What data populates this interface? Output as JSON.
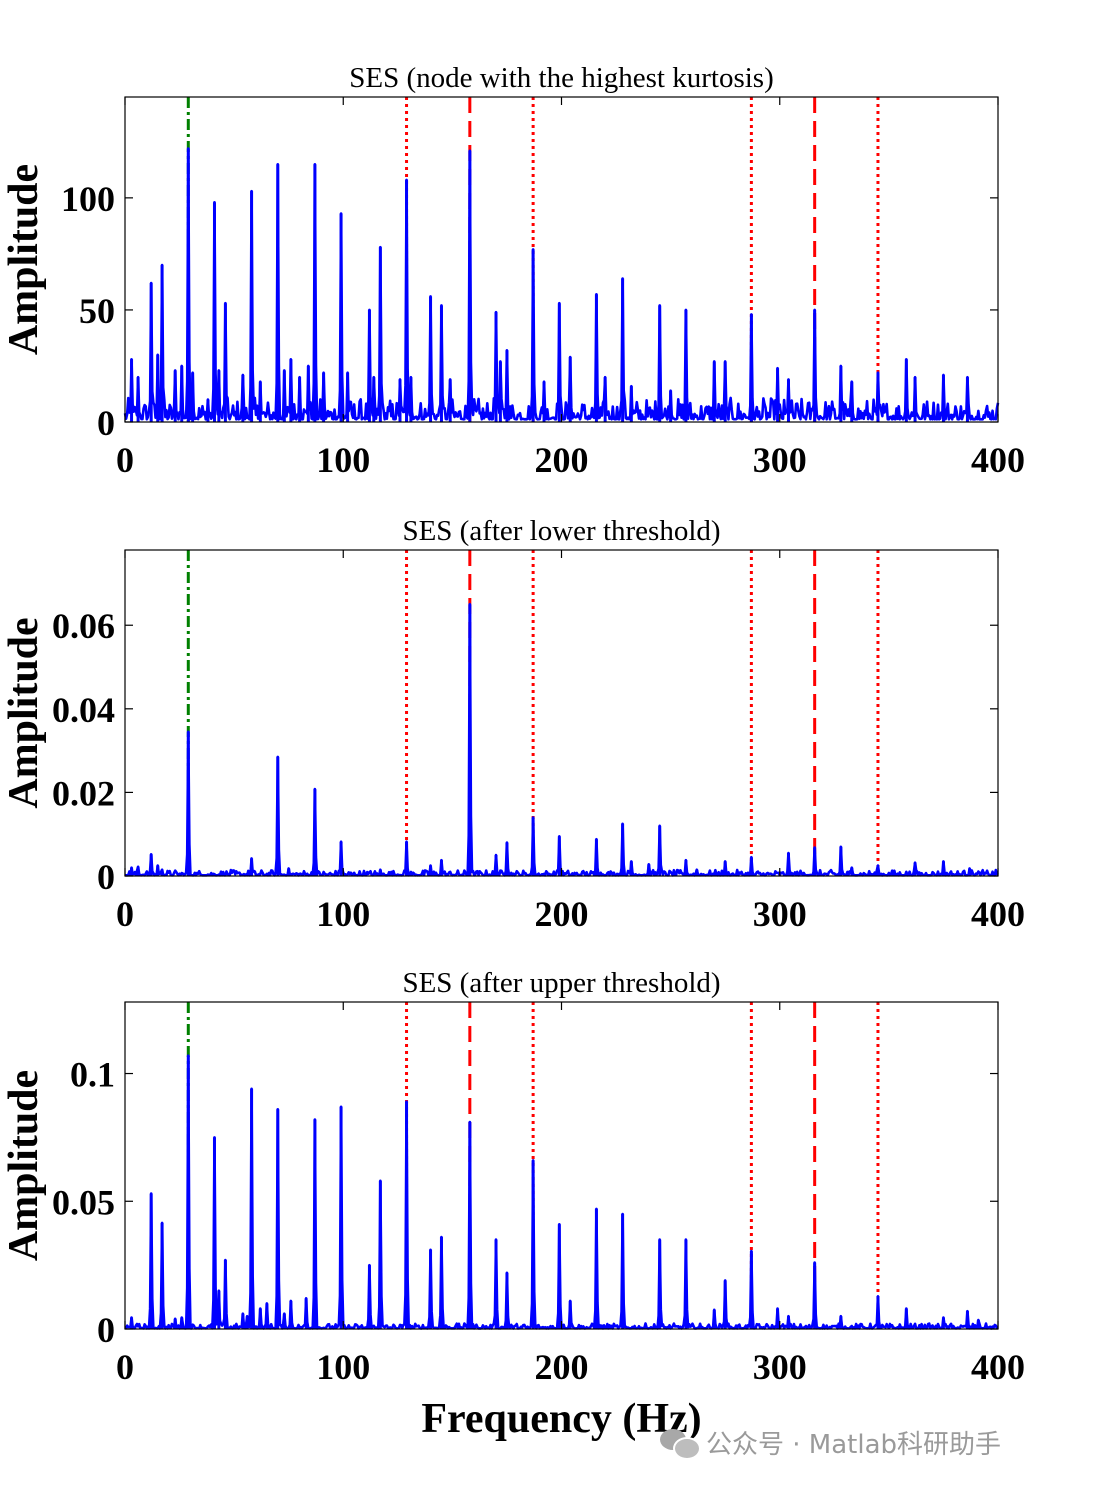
{
  "figure": {
    "xlabel": "Frequency (Hz)",
    "watermark": "公众号 · Matlab科研助手"
  },
  "colors": {
    "spectrum": "#0000ff",
    "marker_green": "#008000",
    "marker_red": "#ff0000",
    "axes": "#000000"
  },
  "markers": {
    "green_dashdot": [
      29
    ],
    "red_dotted": [
      129,
      187,
      287,
      345
    ],
    "red_dashed": [
      158,
      316
    ]
  },
  "chart_data": [
    {
      "type": "line",
      "title": "SES (node with the highest kurtosis)",
      "ylabel": "Amplitude",
      "xlabel": "",
      "xlim": [
        0,
        400
      ],
      "ylim": [
        0,
        145
      ],
      "xticks": [
        0,
        100,
        200,
        300,
        400
      ],
      "yticks": [
        0,
        50,
        100
      ],
      "ytick_labels": [
        "0",
        "50",
        "100"
      ],
      "noise_level": 6,
      "peaks": [
        [
          3,
          28
        ],
        [
          6,
          20
        ],
        [
          12,
          62
        ],
        [
          15,
          30
        ],
        [
          17,
          70
        ],
        [
          23,
          23
        ],
        [
          26,
          25
        ],
        [
          29,
          122
        ],
        [
          31,
          22
        ],
        [
          38,
          10
        ],
        [
          41,
          98
        ],
        [
          43,
          23
        ],
        [
          46,
          53
        ],
        [
          54,
          21
        ],
        [
          58,
          103
        ],
        [
          62,
          18
        ],
        [
          70,
          115
        ],
        [
          73,
          23
        ],
        [
          76,
          28
        ],
        [
          80,
          20
        ],
        [
          84,
          25
        ],
        [
          87,
          115
        ],
        [
          91,
          22
        ],
        [
          99,
          93
        ],
        [
          102,
          22
        ],
        [
          112,
          50
        ],
        [
          114,
          20
        ],
        [
          117,
          78
        ],
        [
          126,
          19
        ],
        [
          129,
          108
        ],
        [
          131,
          20
        ],
        [
          140,
          56
        ],
        [
          145,
          52
        ],
        [
          149,
          19
        ],
        [
          158,
          121
        ],
        [
          170,
          49
        ],
        [
          172,
          27
        ],
        [
          175,
          32
        ],
        [
          187,
          77
        ],
        [
          192,
          18
        ],
        [
          199,
          53
        ],
        [
          204,
          29
        ],
        [
          216,
          57
        ],
        [
          220,
          20
        ],
        [
          228,
          64
        ],
        [
          232,
          16
        ],
        [
          245,
          52
        ],
        [
          250,
          14
        ],
        [
          257,
          50
        ],
        [
          270,
          27
        ],
        [
          275,
          27
        ],
        [
          287,
          48
        ],
        [
          299,
          24
        ],
        [
          304,
          19
        ],
        [
          316,
          50
        ],
        [
          328,
          25
        ],
        [
          333,
          18
        ],
        [
          345,
          22
        ],
        [
          358,
          28
        ],
        [
          362,
          20
        ],
        [
          375,
          21
        ],
        [
          386,
          20
        ]
      ]
    },
    {
      "type": "line",
      "title": "SES (after lower threshold)",
      "ylabel": "Amplitude",
      "xlabel": "",
      "xlim": [
        0,
        400
      ],
      "ylim": [
        0,
        0.078
      ],
      "xticks": [
        0,
        100,
        200,
        300,
        400
      ],
      "yticks": [
        0,
        0.02,
        0.04,
        0.06
      ],
      "ytick_labels": [
        "0",
        "0.02",
        "0.04",
        "0.06"
      ],
      "noise_level": 0.0008,
      "peaks": [
        [
          3,
          0.002
        ],
        [
          6,
          0.0022
        ],
        [
          12,
          0.0052
        ],
        [
          15,
          0.0025
        ],
        [
          17,
          0.0015
        ],
        [
          29,
          0.0345
        ],
        [
          58,
          0.0042
        ],
        [
          70,
          0.0285
        ],
        [
          75,
          0.0018
        ],
        [
          87,
          0.0208
        ],
        [
          99,
          0.0082
        ],
        [
          117,
          0.0015
        ],
        [
          129,
          0.0082
        ],
        [
          140,
          0.0025
        ],
        [
          145,
          0.0038
        ],
        [
          158,
          0.065
        ],
        [
          170,
          0.005
        ],
        [
          175,
          0.008
        ],
        [
          187,
          0.014
        ],
        [
          199,
          0.0095
        ],
        [
          216,
          0.0088
        ],
        [
          228,
          0.0125
        ],
        [
          232,
          0.0035
        ],
        [
          240,
          0.0028
        ],
        [
          245,
          0.012
        ],
        [
          257,
          0.0038
        ],
        [
          262,
          0.0015
        ],
        [
          275,
          0.0035
        ],
        [
          287,
          0.0045
        ],
        [
          304,
          0.0055
        ],
        [
          316,
          0.0068
        ],
        [
          328,
          0.007
        ],
        [
          333,
          0.002
        ],
        [
          345,
          0.0025
        ],
        [
          362,
          0.0032
        ],
        [
          375,
          0.0035
        ],
        [
          387,
          0.0018
        ]
      ]
    },
    {
      "type": "line",
      "title": "SES (after upper threshold)",
      "ylabel": "Amplitude",
      "xlabel": "Frequency (Hz)",
      "xlim": [
        0,
        400
      ],
      "ylim": [
        0,
        0.128
      ],
      "xticks": [
        0,
        100,
        200,
        300,
        400
      ],
      "yticks": [
        0,
        0.05,
        0.1
      ],
      "ytick_labels": [
        "0",
        "0.05",
        "0.1"
      ],
      "noise_level": 0.0012,
      "peaks": [
        [
          3,
          0.0045
        ],
        [
          12,
          0.053
        ],
        [
          17,
          0.0415
        ],
        [
          23,
          0.004
        ],
        [
          26,
          0.0045
        ],
        [
          29,
          0.107
        ],
        [
          41,
          0.075
        ],
        [
          43,
          0.015
        ],
        [
          46,
          0.027
        ],
        [
          54,
          0.006
        ],
        [
          56,
          0.005
        ],
        [
          58,
          0.094
        ],
        [
          62,
          0.008
        ],
        [
          65,
          0.01
        ],
        [
          70,
          0.086
        ],
        [
          73,
          0.006
        ],
        [
          76,
          0.011
        ],
        [
          83,
          0.012
        ],
        [
          87,
          0.082
        ],
        [
          99,
          0.087
        ],
        [
          112,
          0.025
        ],
        [
          117,
          0.058
        ],
        [
          129,
          0.089
        ],
        [
          140,
          0.031
        ],
        [
          145,
          0.036
        ],
        [
          158,
          0.081
        ],
        [
          170,
          0.035
        ],
        [
          175,
          0.022
        ],
        [
          187,
          0.066
        ],
        [
          199,
          0.041
        ],
        [
          204,
          0.011
        ],
        [
          216,
          0.047
        ],
        [
          228,
          0.045
        ],
        [
          245,
          0.035
        ],
        [
          257,
          0.035
        ],
        [
          270,
          0.0075
        ],
        [
          275,
          0.019
        ],
        [
          287,
          0.0305
        ],
        [
          299,
          0.008
        ],
        [
          304,
          0.005
        ],
        [
          316,
          0.026
        ],
        [
          328,
          0.005
        ],
        [
          345,
          0.0128
        ],
        [
          358,
          0.008
        ],
        [
          375,
          0.0045
        ],
        [
          386,
          0.007
        ],
        [
          391,
          0.0035
        ]
      ]
    }
  ]
}
